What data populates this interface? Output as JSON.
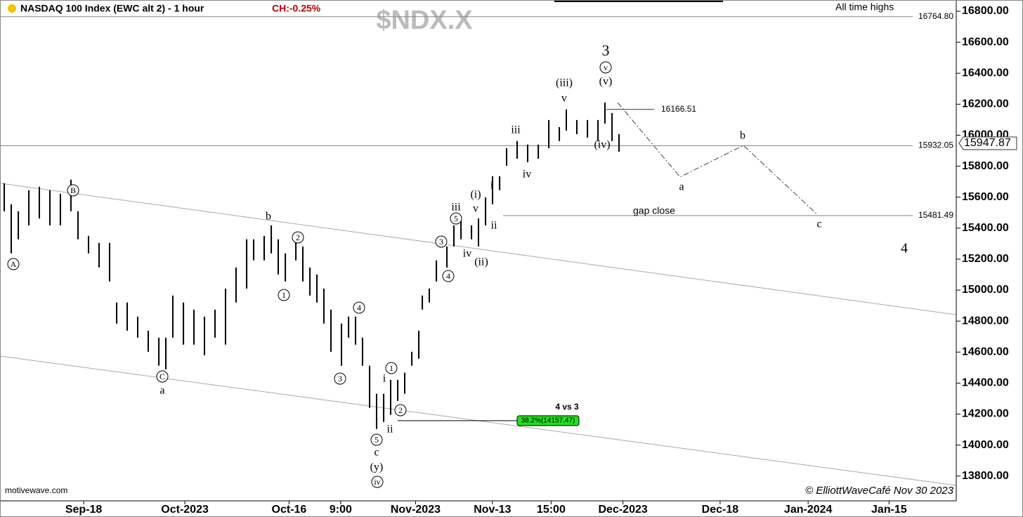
{
  "chart_data": {
    "type": "ohlc",
    "title": "NASDAQ 100 Index (EWC alt 2) - 1 hour",
    "change": "CH:-0.25%",
    "watermark": "$NDX.X",
    "source": "motivewave.com",
    "copyright": "© ElliottWaveCafé Nov 30 2023",
    "ylim": [
      13640,
      16868
    ],
    "yticks": [
      {
        "value": 13800,
        "label": "13800.00"
      },
      {
        "value": 14000,
        "label": "14000.00"
      },
      {
        "value": 14200,
        "label": "14200.00"
      },
      {
        "value": 14400,
        "label": "14400.00"
      },
      {
        "value": 14600,
        "label": "14600.00"
      },
      {
        "value": 14800,
        "label": "14800.00"
      },
      {
        "value": 15000,
        "label": "15000.00"
      },
      {
        "value": 15200,
        "label": "15200.00"
      },
      {
        "value": 15400,
        "label": "15400.00"
      },
      {
        "value": 15600,
        "label": "15600.00"
      },
      {
        "value": 15800,
        "label": "15800.00"
      },
      {
        "value": 16000,
        "label": "16000.00"
      },
      {
        "value": 16200,
        "label": "16200.00"
      },
      {
        "value": 16400,
        "label": "16400.00"
      },
      {
        "value": 16600,
        "label": "16600.00"
      },
      {
        "value": 16800,
        "label": "16800.00"
      }
    ],
    "xlim": [
      0,
      94.44
    ],
    "xticks": [
      {
        "value": 8.2,
        "label": "Sep-18"
      },
      {
        "value": 18.2,
        "label": "Oct-2023"
      },
      {
        "value": 28.5,
        "label": "Oct-16"
      },
      {
        "value": 33.6,
        "label": "9:00"
      },
      {
        "value": 41,
        "label": "Nov-2023"
      },
      {
        "value": 48.6,
        "label": "Nov-13"
      },
      {
        "value": 54.4,
        "label": "15:00"
      },
      {
        "value": 61.5,
        "label": "Dec-2023"
      },
      {
        "value": 71.1,
        "label": "Dec-18"
      },
      {
        "value": 79.8,
        "label": "Jan-2024"
      },
      {
        "value": 87.8,
        "label": "Jan-15"
      }
    ],
    "series": [
      {
        "color": "#000000",
        "x": [
          0.35,
          1.04,
          1.74,
          2.78,
          3.82,
          4.86,
          5.9,
          6.94,
          7.64,
          8.68,
          9.72,
          10.76,
          11.46,
          12.5,
          13.54,
          14.58,
          15.63,
          16.32,
          17.01,
          18.06,
          19.1,
          20.14,
          21.18,
          22.22,
          23.26,
          24.31,
          25,
          26.04,
          26.74,
          27.43,
          28.13,
          29.17,
          29.86,
          30.56,
          31.25,
          31.94,
          32.64,
          33.68,
          34.38,
          35.07,
          35.76,
          36.46,
          37.15,
          37.85,
          38.54,
          39.24,
          39.93,
          40.63,
          41.32,
          41.67,
          42.36,
          43.06,
          44.1,
          44.79,
          45.49,
          46.53,
          47.22,
          47.92,
          48.61,
          49.31,
          50,
          51.04,
          52.08,
          53.13,
          54.17,
          55.21,
          55.9,
          56.94,
          57.99,
          59.03,
          59.72,
          60.42,
          61.11
        ],
        "high": [
          15690,
          15554,
          15509,
          15645,
          15667,
          15645,
          15622,
          15713,
          15509,
          15350,
          15305,
          15305,
          14920,
          14920,
          14829,
          14738,
          14693,
          14693,
          14965,
          14920,
          14874,
          14829,
          14874,
          15010,
          15146,
          15328,
          15328,
          15350,
          15418,
          15328,
          15237,
          15373,
          15282,
          15146,
          15101,
          15010,
          14874,
          14784,
          14829,
          14829,
          14693,
          14512,
          14331,
          14331,
          14421,
          14421,
          14467,
          14602,
          14738,
          14965,
          15010,
          15192,
          15282,
          15418,
          15463,
          15418,
          15463,
          15599,
          15735,
          15735,
          15916,
          15962,
          15939,
          15939,
          16098,
          16052,
          16166,
          16098,
          16098,
          16098,
          16211,
          16143,
          16007
        ],
        "high_low_note": null,
        "low": [
          15509,
          15237,
          15328,
          15418,
          15463,
          15418,
          15418,
          15509,
          15328,
          15237,
          15146,
          15056,
          14784,
          14738,
          14693,
          14602,
          14512,
          14489,
          14693,
          14648,
          14648,
          14580,
          14693,
          14648,
          14920,
          15010,
          15192,
          15192,
          15237,
          15101,
          15056,
          15192,
          15056,
          14965,
          14920,
          14784,
          14602,
          14512,
          14693,
          14648,
          14512,
          14240,
          14104,
          14149,
          14195,
          14285,
          14331,
          14512,
          14557,
          14874,
          14920,
          15056,
          15146,
          15282,
          15328,
          15328,
          15282,
          15418,
          15554,
          15645,
          15803,
          15848,
          15826,
          15848,
          15916,
          15962,
          16030,
          16007,
          15984,
          15962,
          16075,
          15962,
          15894
        ]
      }
    ],
    "levels": [
      {
        "value": 16764.8,
        "label": "16764.80"
      },
      15932.05,
      15481.49,
      16166.51
    ],
    "level_notes": [
      "All time highs",
      "gap close"
    ],
    "last_price": 15947.87,
    "fib": {
      "value": 14157.47,
      "label": "38.2%(14157.47)",
      "title": "4 vs 3"
    },
    "wave_labels": [
      "A",
      "B",
      "C",
      "a",
      "b",
      "1",
      "2",
      "3",
      "4",
      "1",
      "i",
      "2",
      "ii",
      "5",
      "c",
      "(y)",
      "iv",
      "3",
      "4",
      "5",
      "iii",
      "(i)",
      "v",
      "iv",
      "(ii)",
      "i",
      "ii",
      "iii",
      "iv",
      "(iii)",
      "v",
      "(iv)",
      "v",
      "(v)",
      "3",
      "a",
      "b",
      "c",
      "4"
    ]
  }
}
